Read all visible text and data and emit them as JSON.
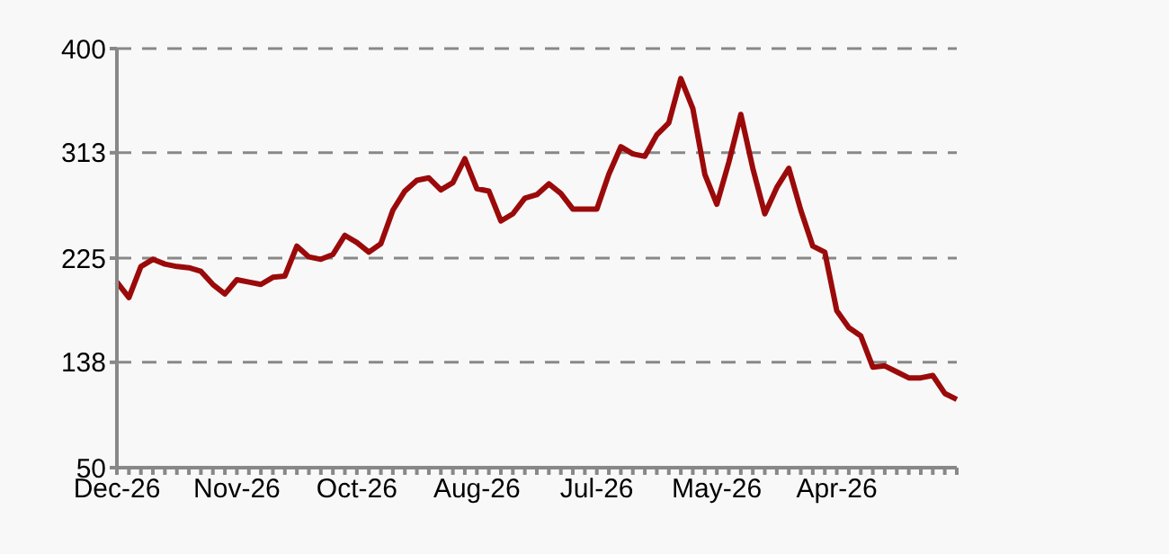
{
  "chart_data": {
    "type": "line",
    "categories": [
      "Dec-26",
      null,
      null,
      null,
      null,
      null,
      null,
      null,
      null,
      null,
      "Nov-26",
      null,
      null,
      null,
      null,
      null,
      null,
      null,
      null,
      null,
      "Oct-26",
      null,
      null,
      null,
      null,
      null,
      null,
      null,
      null,
      null,
      "Aug-26",
      null,
      null,
      null,
      null,
      null,
      null,
      null,
      null,
      null,
      "Jul-26",
      null,
      null,
      null,
      null,
      null,
      null,
      null,
      null,
      null,
      "May-26",
      null,
      null,
      null,
      null,
      null,
      null,
      null,
      null,
      null,
      "Apr-26",
      null,
      null,
      null,
      null,
      null,
      null,
      null,
      null,
      null,
      null
    ],
    "series": [
      {
        "color": "#9b0a0a",
        "values": [
          205,
          192,
          218,
          224,
          220,
          218,
          217,
          214,
          203,
          195,
          207,
          205,
          203,
          209,
          210,
          235,
          226,
          224,
          228,
          244,
          238,
          230,
          237,
          265,
          281,
          290,
          292,
          282,
          288,
          308,
          283,
          281,
          256,
          262,
          275,
          278,
          287,
          279,
          266,
          266,
          266,
          295,
          318,
          312,
          310,
          328,
          338,
          375,
          350,
          295,
          270,
          305,
          345,
          300,
          262,
          284,
          300,
          265,
          235,
          230,
          181,
          167,
          160,
          134,
          135,
          130,
          125,
          125,
          127,
          112,
          107
        ]
      }
    ],
    "ylim": [
      50,
      400
    ],
    "yticks": [
      50,
      138,
      225,
      313,
      400
    ],
    "grid": "y",
    "marker": "none",
    "line_style": "solid"
  }
}
